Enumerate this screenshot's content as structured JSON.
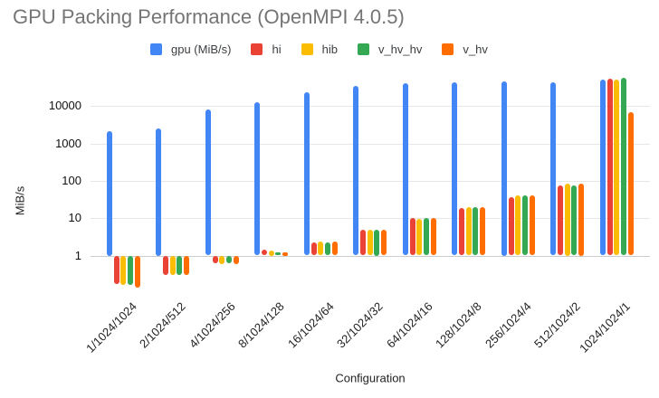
{
  "chart_data": {
    "type": "bar",
    "title": "GPU Packing Performance (OpenMPI 4.0.5)",
    "xlabel": "Configuration",
    "ylabel": "MiB/s",
    "y_scale": "log",
    "y_ticks": [
      1,
      10,
      100,
      1000,
      10000
    ],
    "ylim": [
      0.13,
      60000
    ],
    "grid": true,
    "legend_position": "top",
    "categories": [
      "1/1024/1024",
      "2/1024/512",
      "4/1024/256",
      "8/1024/128",
      "16/1024/64",
      "32/1024/32",
      "64/1024/16",
      "128/1024/8",
      "256/1024/4",
      "512/1024/2",
      "1024/1024/1"
    ],
    "series": [
      {
        "name": "gpu (MiB/s)",
        "color": "#4285F4",
        "values": [
          2200,
          2600,
          8000,
          13000,
          23000,
          34000,
          40000,
          44000,
          47000,
          44000,
          50000
        ]
      },
      {
        "name": "hi",
        "color": "#EA4335",
        "values": [
          0.17,
          0.31,
          0.64,
          1.45,
          2.2,
          5.0,
          10,
          19,
          36,
          75,
          55000
        ]
      },
      {
        "name": "hib",
        "color": "#FBBC04",
        "values": [
          0.16,
          0.31,
          0.6,
          1.4,
          2.4,
          4.8,
          9.8,
          20,
          40,
          84,
          51000
        ]
      },
      {
        "name": "v_hv_hv",
        "color": "#34A853",
        "values": [
          0.16,
          0.3,
          0.64,
          1.2,
          2.2,
          4.9,
          10,
          20,
          40,
          75,
          56000
        ]
      },
      {
        "name": "v_hv",
        "color": "#FF6D01",
        "values": [
          0.14,
          0.3,
          0.6,
          1.25,
          2.4,
          5.0,
          10,
          20,
          40,
          84,
          6800
        ]
      }
    ]
  }
}
